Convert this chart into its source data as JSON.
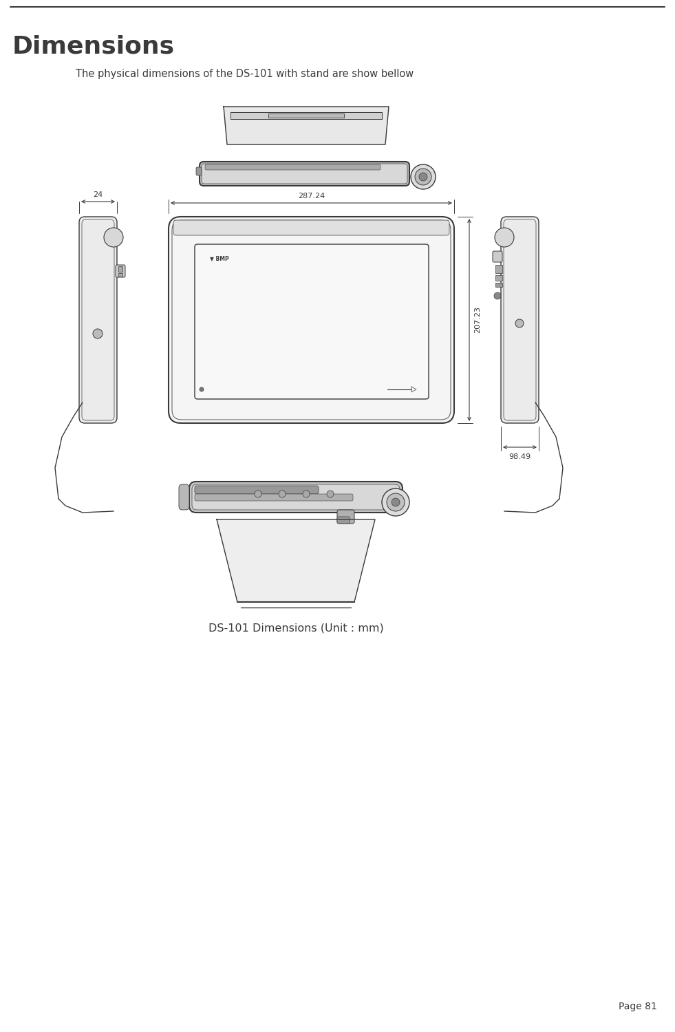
{
  "title": "Dimensions",
  "subtitle": "The physical dimensions of the DS-101 with stand are show bellow",
  "caption": "DS-101 Dimensions (Unit : mm)",
  "page_number": "Page 81",
  "dim_width": "287.24",
  "dim_height": "207.23",
  "dim_depth": "98.49",
  "dim_side": "24",
  "bg_color": "#ffffff",
  "line_color": "#3a3a3a",
  "lc_light": "#888888",
  "title_fontsize": 26,
  "subtitle_fontsize": 10.5,
  "caption_fontsize": 11.5
}
